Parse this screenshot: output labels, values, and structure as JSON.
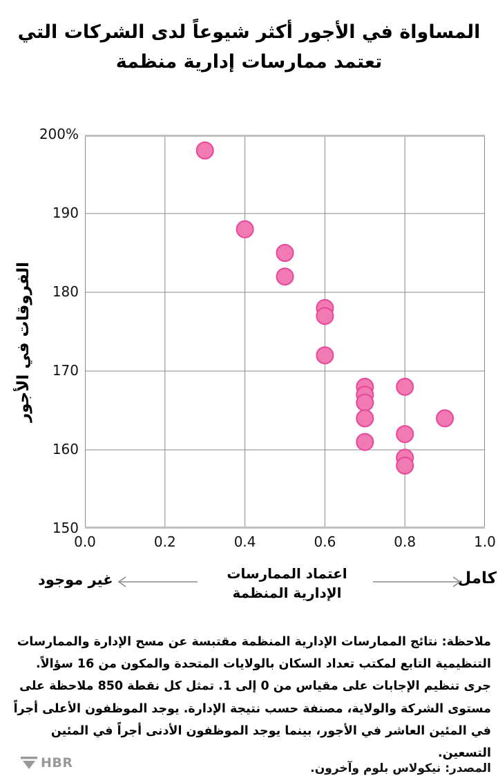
{
  "title": "المساواة في الأجور أكثر شيوعاً لدى الشركات التي تعتمد ممارسات إدارية منظمة",
  "chart_data": {
    "type": "scatter",
    "x": [
      0.3,
      0.4,
      0.5,
      0.5,
      0.6,
      0.6,
      0.6,
      0.7,
      0.7,
      0.7,
      0.7,
      0.7,
      0.8,
      0.8,
      0.8,
      0.8,
      0.9
    ],
    "y": [
      198,
      188,
      185,
      182,
      178,
      177,
      172,
      168,
      167,
      166,
      164,
      161,
      168,
      162,
      159,
      158,
      164
    ],
    "title": "المساواة في الأجور أكثر شيوعاً لدى الشركات التي تعتمد ممارسات إدارية منظمة",
    "xlabel": "اعتماد الممارسات الإدارية المنظمة",
    "ylabel": "الفروقات في الأجور",
    "x_direction_low": "غير موجود",
    "x_direction_high": "كامل",
    "xlim": [
      0.0,
      1.0
    ],
    "ylim": [
      150,
      200
    ],
    "x_tick_values": [
      0.0,
      0.2,
      0.4,
      0.6,
      0.8,
      1.0
    ],
    "x_ticks": [
      "0.0",
      "0.2",
      "0.4",
      "0.6",
      "0.8",
      "1.0"
    ],
    "y_tick_values": [
      200,
      190,
      180,
      170,
      160,
      150
    ],
    "y_ticks": [
      "200%",
      "190",
      "180",
      "170",
      "160",
      "150"
    ],
    "grid": true,
    "legend": "none",
    "marker_fill": "#f27ab3",
    "marker_stroke": "#e9459b",
    "gridline_color": "#8a8a8a",
    "frame_color": "#bfbfbf"
  },
  "note": "ملاحظة: نتائج الممارسات الإدارية المنظمة مقتبسة عن مسح الإدارة والممارسات التنظيمية التابع لمكتب تعداد السكان بالولايات المتحدة والمكون من 16 سؤالاً. جرى تنظيم الإجابات على مقياس من 0 إلى 1. تمثل كل نقطة 850 ملاحظة على مستوى الشركة والولاية، مصنفة حسب نتيجة الإدارة. يوجد الموظفون الأعلى أجراً في المئين العاشر في الأجور، بينما يوجد الموظفون الأدنى أجراً في المئين التسعين.",
  "source": "المصدر: نيكولاس بلوم وآخرون.",
  "brand": {
    "name": "HBR",
    "color": "#97999b"
  }
}
